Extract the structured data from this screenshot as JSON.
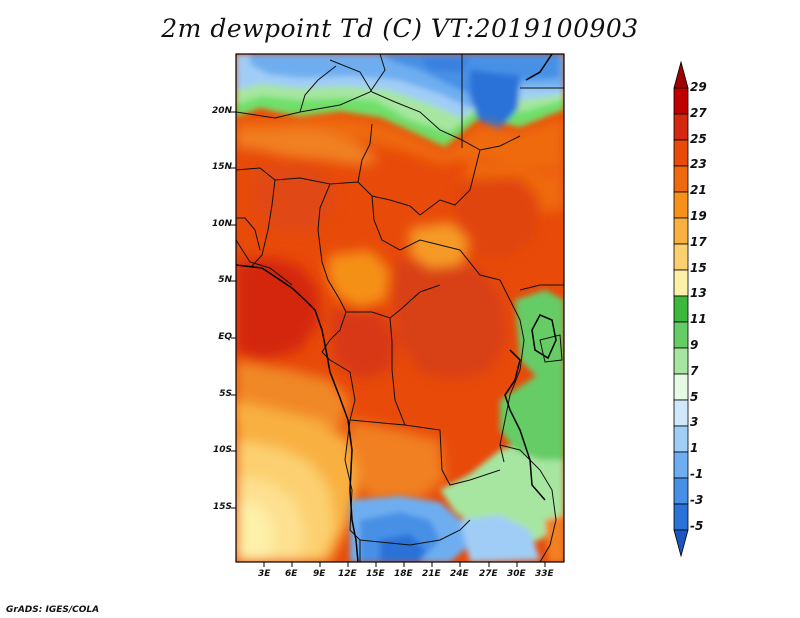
{
  "title": "2m dewpoint Td (C) VT:2019100903",
  "credit": "GrADS: IGES/COLA",
  "lat_labels": [
    "20N",
    "15N",
    "10N",
    "5N",
    "EQ",
    "5S",
    "10S",
    "15S"
  ],
  "lon_labels": [
    "3E",
    "6E",
    "9E",
    "12E",
    "15E",
    "18E",
    "21E",
    "24E",
    "27E",
    "30E",
    "33E"
  ],
  "colorbar": {
    "labels": [
      "29",
      "27",
      "25",
      "23",
      "21",
      "19",
      "17",
      "15",
      "13",
      "11",
      "9",
      "7",
      "5",
      "3",
      "1",
      "-1",
      "-3",
      "-5"
    ],
    "colors": [
      "#a00000",
      "#c00000",
      "#d42810",
      "#e84a0a",
      "#ef6a0c",
      "#f59018",
      "#f8b040",
      "#fcd070",
      "#fdf0a8",
      "#3cb83c",
      "#66cc66",
      "#a6e6a0",
      "#e6fae6",
      "#d0e8fa",
      "#a0cdf6",
      "#6eaef0",
      "#4690e6",
      "#2a72d8",
      "#1a55c0"
    ]
  },
  "colors": {
    "sahara_blue": "#4690e6",
    "sahara_deep": "#2a72d8",
    "humid_red": "#e84a0a",
    "humid_orange": "#ef6a0c",
    "dry_yellow": "#fcd070",
    "south_green": "#66cc66",
    "coast_light": "#fdf0a8"
  }
}
